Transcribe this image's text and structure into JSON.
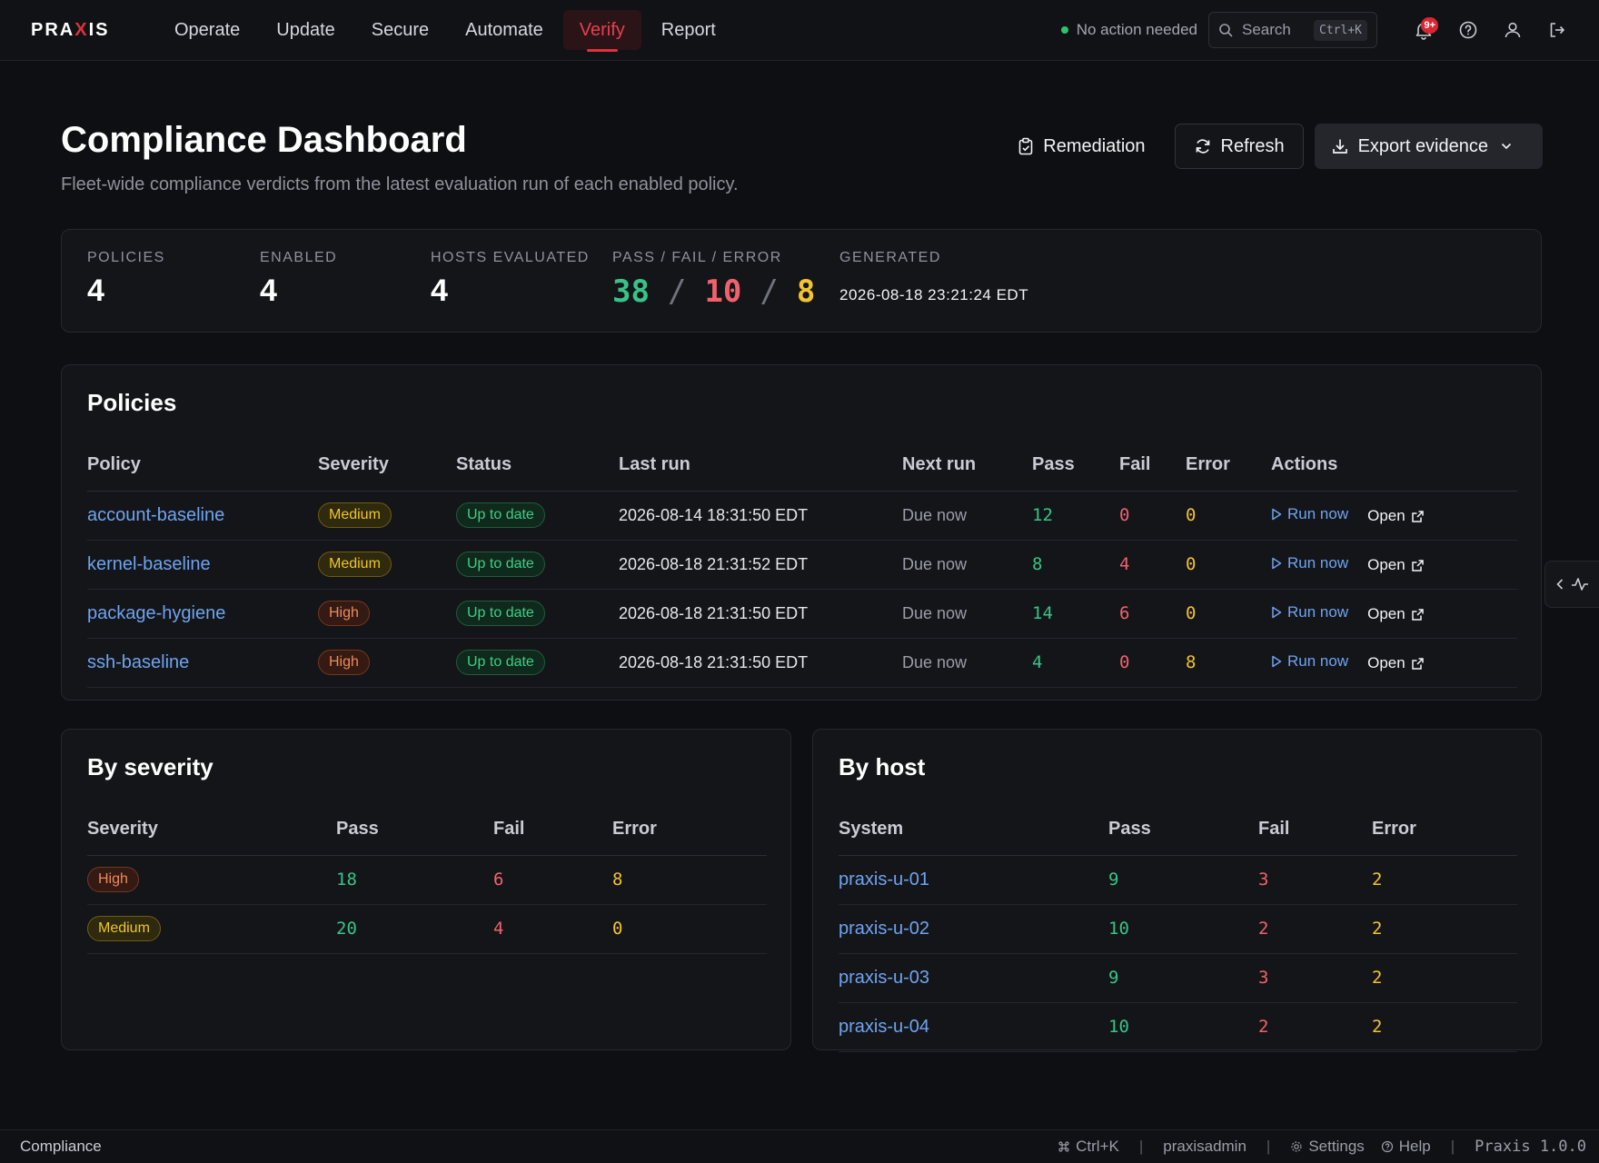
{
  "nav": {
    "logo_prefix": "PRA",
    "logo_x": "X",
    "logo_suffix": "IS",
    "tabs": [
      "Operate",
      "Update",
      "Secure",
      "Automate",
      "Verify",
      "Report"
    ],
    "active_tab": "Verify",
    "status_text": "No action needed",
    "search_placeholder": "Search",
    "search_shortcut": "Ctrl+K",
    "notification_count": "9+"
  },
  "header": {
    "title": "Compliance Dashboard",
    "subtitle": "Fleet-wide compliance verdicts from the latest evaluation run of each enabled policy.",
    "remediation_label": "Remediation",
    "refresh_label": "Refresh",
    "export_label": "Export evidence"
  },
  "stats": {
    "policies_label": "POLICIES",
    "policies_value": "4",
    "enabled_label": "ENABLED",
    "enabled_value": "4",
    "hosts_label": "HOSTS EVALUATED",
    "hosts_value": "4",
    "pfe_label": "PASS / FAIL / ERROR",
    "pass_value": "38",
    "fail_value": "10",
    "error_value": "8",
    "sep": "/",
    "generated_label": "GENERATED",
    "generated_value": "2026-08-18 23:21:24 EDT"
  },
  "policies": {
    "title": "Policies",
    "columns": [
      "Policy",
      "Severity",
      "Status",
      "Last run",
      "Next run",
      "Pass",
      "Fail",
      "Error",
      "Actions"
    ],
    "run_now_label": "Run now",
    "open_label": "Open",
    "rows": [
      {
        "name": "account-baseline",
        "severity": "Medium",
        "status": "Up to date",
        "last_run": "2026-08-14 18:31:50 EDT",
        "next_run": "Due now",
        "pass": "12",
        "fail": "0",
        "error": "0"
      },
      {
        "name": "kernel-baseline",
        "severity": "Medium",
        "status": "Up to date",
        "last_run": "2026-08-18 21:31:52 EDT",
        "next_run": "Due now",
        "pass": "8",
        "fail": "4",
        "error": "0"
      },
      {
        "name": "package-hygiene",
        "severity": "High",
        "status": "Up to date",
        "last_run": "2026-08-18 21:31:50 EDT",
        "next_run": "Due now",
        "pass": "14",
        "fail": "6",
        "error": "0"
      },
      {
        "name": "ssh-baseline",
        "severity": "High",
        "status": "Up to date",
        "last_run": "2026-08-18 21:31:50 EDT",
        "next_run": "Due now",
        "pass": "4",
        "fail": "0",
        "error": "8"
      }
    ]
  },
  "by_severity": {
    "title": "By severity",
    "columns": [
      "Severity",
      "Pass",
      "Fail",
      "Error"
    ],
    "rows": [
      {
        "severity": "High",
        "pass": "18",
        "fail": "6",
        "error": "8"
      },
      {
        "severity": "Medium",
        "pass": "20",
        "fail": "4",
        "error": "0"
      }
    ]
  },
  "by_host": {
    "title": "By host",
    "columns": [
      "System",
      "Pass",
      "Fail",
      "Error"
    ],
    "rows": [
      {
        "system": "praxis-u-01",
        "pass": "9",
        "fail": "3",
        "error": "2"
      },
      {
        "system": "praxis-u-02",
        "pass": "10",
        "fail": "2",
        "error": "2"
      },
      {
        "system": "praxis-u-03",
        "pass": "9",
        "fail": "3",
        "error": "2"
      },
      {
        "system": "praxis-u-04",
        "pass": "10",
        "fail": "2",
        "error": "2"
      }
    ]
  },
  "footer": {
    "section": "Compliance",
    "shortcut": "Ctrl+K",
    "user": "praxisadmin",
    "settings": "Settings",
    "help": "Help",
    "version": "Praxis 1.0.0",
    "sep": "|"
  },
  "colors": {
    "accent": "#e0313d",
    "pass": "#37c487",
    "fail": "#f0626b",
    "error": "#f2c230",
    "link": "#6ea4f0"
  }
}
